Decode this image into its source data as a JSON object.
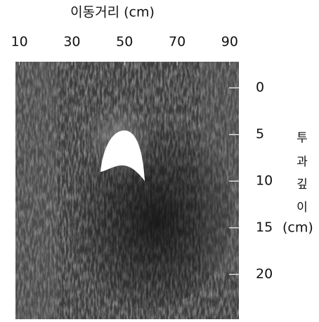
{
  "chart_data": {
    "type": "radargram",
    "x_label": "이동거리 (cm)",
    "xlim": [
      8.5,
      93.5
    ],
    "xticks": [
      10,
      30,
      50,
      70,
      90
    ],
    "ylim": [
      -2.8,
      24.8
    ],
    "yticks": [
      0,
      5,
      10,
      15,
      20
    ],
    "y_label_chars": [
      "투",
      "과",
      "깊",
      "이"
    ],
    "y_label_unit": "(cm)"
  }
}
